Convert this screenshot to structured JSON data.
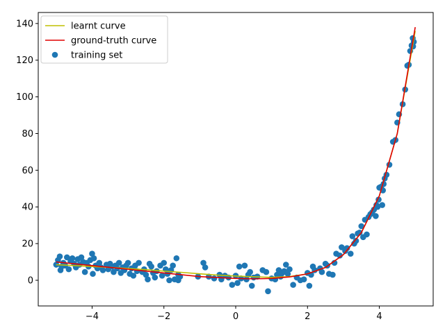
{
  "chart_data": {
    "type": "scatter",
    "xlim": [
      -5.5,
      5.5
    ],
    "ylim": [
      -14,
      146
    ],
    "xticks": [
      -4,
      -2,
      0,
      2,
      4
    ],
    "yticks": [
      0,
      20,
      40,
      60,
      80,
      100,
      120,
      140
    ],
    "xtick_labels": [
      "−4",
      "−2",
      "0",
      "2",
      "4"
    ],
    "ytick_labels": [
      "0",
      "20",
      "40",
      "60",
      "80",
      "100",
      "120",
      "140"
    ],
    "grid": false,
    "legend_position": "top-left",
    "colors": {
      "learnt": "#bfbf00",
      "ground_truth": "#e00000",
      "training": "#1f77b4"
    },
    "series": [
      {
        "name": "learnt curve",
        "kind": "line",
        "x": [
          -5,
          -4.5,
          -4,
          -3.5,
          -3,
          -2.5,
          -2,
          -1.5,
          -1,
          -0.5,
          0,
          0.5,
          1,
          1.5,
          2,
          2.5,
          3,
          3.5,
          4,
          4.5,
          5
        ],
        "y": [
          8.5,
          8.0,
          7.5,
          7.0,
          6.4,
          5.8,
          5.0,
          4.3,
          3.5,
          2.8,
          2.3,
          1.9,
          1.6,
          2.0,
          3.5,
          7.0,
          14.0,
          26.0,
          46.0,
          80.0,
          136.0
        ]
      },
      {
        "name": "ground-truth curve",
        "kind": "line",
        "x": [
          -5,
          -4.5,
          -4,
          -3.5,
          -3,
          -2.5,
          -2,
          -1.5,
          -1,
          -0.5,
          0,
          0.5,
          1,
          1.5,
          2,
          2.5,
          3,
          3.5,
          4,
          4.5,
          5
        ],
        "y": [
          10.0,
          9.0,
          8.0,
          7.0,
          6.0,
          5.0,
          4.0,
          3.0,
          2.0,
          1.5,
          1.0,
          0.8,
          1.0,
          1.8,
          3.5,
          7.0,
          14.0,
          26.0,
          46.0,
          80.0,
          138.0
        ]
      },
      {
        "name": "training set",
        "kind": "scatter",
        "points": [
          [
            -5.0,
            8.5
          ],
          [
            -4.95,
            11.0
          ],
          [
            -4.9,
            13.0
          ],
          [
            -4.88,
            5.5
          ],
          [
            -4.85,
            7.5
          ],
          [
            -4.8,
            9.5
          ],
          [
            -4.75,
            8.0
          ],
          [
            -4.7,
            12.5
          ],
          [
            -4.65,
            6.0
          ],
          [
            -4.6,
            10.5
          ],
          [
            -4.55,
            12.0
          ],
          [
            -4.5,
            9.0
          ],
          [
            -4.45,
            7.0
          ],
          [
            -4.4,
            11.5
          ],
          [
            -4.35,
            8.5
          ],
          [
            -4.3,
            12.5
          ],
          [
            -4.25,
            10.0
          ],
          [
            -4.2,
            4.5
          ],
          [
            -4.15,
            9.5
          ],
          [
            -4.1,
            7.5
          ],
          [
            -4.05,
            11.0
          ],
          [
            -4.0,
            14.5
          ],
          [
            -3.98,
            3.5
          ],
          [
            -3.95,
            12.0
          ],
          [
            -3.9,
            8.0
          ],
          [
            -3.85,
            6.5
          ],
          [
            -3.8,
            9.5
          ],
          [
            -3.75,
            7.0
          ],
          [
            -3.7,
            5.5
          ],
          [
            -3.6,
            8.5
          ],
          [
            -3.55,
            6.0
          ],
          [
            -3.5,
            9.0
          ],
          [
            -3.45,
            7.5
          ],
          [
            -3.4,
            4.5
          ],
          [
            -3.35,
            8.0
          ],
          [
            -3.3,
            6.5
          ],
          [
            -3.25,
            9.5
          ],
          [
            -3.2,
            4.0
          ],
          [
            -3.15,
            7.0
          ],
          [
            -3.1,
            5.5
          ],
          [
            -3.05,
            8.0
          ],
          [
            -3.0,
            9.5
          ],
          [
            -2.95,
            3.5
          ],
          [
            -2.9,
            6.5
          ],
          [
            -2.85,
            2.5
          ],
          [
            -2.8,
            8.0
          ],
          [
            -2.75,
            5.0
          ],
          [
            -2.7,
            9.5
          ],
          [
            -2.6,
            4.5
          ],
          [
            -2.55,
            6.0
          ],
          [
            -2.5,
            3.0
          ],
          [
            -2.45,
            0.5
          ],
          [
            -2.4,
            9.0
          ],
          [
            -2.35,
            7.5
          ],
          [
            -2.3,
            4.0
          ],
          [
            -2.25,
            1.5
          ],
          [
            -2.2,
            5.0
          ],
          [
            -2.1,
            8.0
          ],
          [
            -2.05,
            2.5
          ],
          [
            -2.0,
            9.5
          ],
          [
            -1.95,
            6.0
          ],
          [
            -1.9,
            3.5
          ],
          [
            -1.85,
            0.0
          ],
          [
            -1.8,
            5.5
          ],
          [
            -1.75,
            8.0
          ],
          [
            -1.7,
            0.5
          ],
          [
            -1.65,
            12.0
          ],
          [
            -1.6,
            3.0
          ],
          [
            -1.55,
            2.0
          ],
          [
            -1.6,
            0.0
          ],
          [
            -1.05,
            2.0
          ],
          [
            -0.9,
            9.5
          ],
          [
            -0.85,
            7.0
          ],
          [
            -0.75,
            2.0
          ],
          [
            -0.6,
            1.0
          ],
          [
            -0.45,
            3.0
          ],
          [
            -0.4,
            0.5
          ],
          [
            -0.3,
            2.5
          ],
          [
            -0.2,
            1.5
          ],
          [
            -0.1,
            -2.5
          ],
          [
            0.0,
            2.5
          ],
          [
            0.05,
            -1.5
          ],
          [
            0.1,
            7.5
          ],
          [
            0.15,
            1.0
          ],
          [
            0.25,
            8.0
          ],
          [
            0.3,
            0.5
          ],
          [
            0.35,
            3.0
          ],
          [
            0.4,
            4.5
          ],
          [
            0.45,
            -3.0
          ],
          [
            0.5,
            1.5
          ],
          [
            0.6,
            2.0
          ],
          [
            0.75,
            5.5
          ],
          [
            0.85,
            4.5
          ],
          [
            0.9,
            -6.0
          ],
          [
            1.0,
            1.0
          ],
          [
            1.1,
            0.5
          ],
          [
            1.15,
            3.0
          ],
          [
            1.2,
            5.5
          ],
          [
            1.25,
            2.0
          ],
          [
            1.3,
            4.0
          ],
          [
            1.35,
            5.0
          ],
          [
            1.4,
            8.5
          ],
          [
            1.45,
            3.5
          ],
          [
            1.5,
            6.0
          ],
          [
            1.6,
            -2.5
          ],
          [
            1.7,
            1.5
          ],
          [
            1.8,
            0.0
          ],
          [
            1.9,
            0.5
          ],
          [
            2.0,
            4.0
          ],
          [
            2.05,
            -3.0
          ],
          [
            2.1,
            3.0
          ],
          [
            2.15,
            7.5
          ],
          [
            2.2,
            5.5
          ],
          [
            2.35,
            6.5
          ],
          [
            2.4,
            4.5
          ],
          [
            2.5,
            9.0
          ],
          [
            2.55,
            8.0
          ],
          [
            2.6,
            3.5
          ],
          [
            2.7,
            3.0
          ],
          [
            2.75,
            9.5
          ],
          [
            2.8,
            14.5
          ],
          [
            2.9,
            13.5
          ],
          [
            2.95,
            18.0
          ],
          [
            3.05,
            16.0
          ],
          [
            3.1,
            17.5
          ],
          [
            3.2,
            14.5
          ],
          [
            3.25,
            24.0
          ],
          [
            3.3,
            20.0
          ],
          [
            3.35,
            21.5
          ],
          [
            3.4,
            25.5
          ],
          [
            3.45,
            26.0
          ],
          [
            3.5,
            29.5
          ],
          [
            3.55,
            23.5
          ],
          [
            3.6,
            33.0
          ],
          [
            3.65,
            25.0
          ],
          [
            3.7,
            34.5
          ],
          [
            3.75,
            36.0
          ],
          [
            3.8,
            37.0
          ],
          [
            3.85,
            38.5
          ],
          [
            3.9,
            35.0
          ],
          [
            3.92,
            41.0
          ],
          [
            3.95,
            40.0
          ],
          [
            3.98,
            44.0
          ],
          [
            4.0,
            50.5
          ],
          [
            4.05,
            51.0
          ],
          [
            4.08,
            41.0
          ],
          [
            4.1,
            49.0
          ],
          [
            4.12,
            52.5
          ],
          [
            4.15,
            55.5
          ],
          [
            4.2,
            57.5
          ],
          [
            4.28,
            63.0
          ],
          [
            4.38,
            75.5
          ],
          [
            4.45,
            76.5
          ],
          [
            4.5,
            86.0
          ],
          [
            4.55,
            90.5
          ],
          [
            4.65,
            96.0
          ],
          [
            4.72,
            104.0
          ],
          [
            4.78,
            117.0
          ],
          [
            4.82,
            117.5
          ],
          [
            4.86,
            125.0
          ],
          [
            4.9,
            128.0
          ],
          [
            4.93,
            132.0
          ],
          [
            4.96,
            130.0
          ],
          [
            4.94,
            127.5
          ]
        ]
      }
    ]
  }
}
